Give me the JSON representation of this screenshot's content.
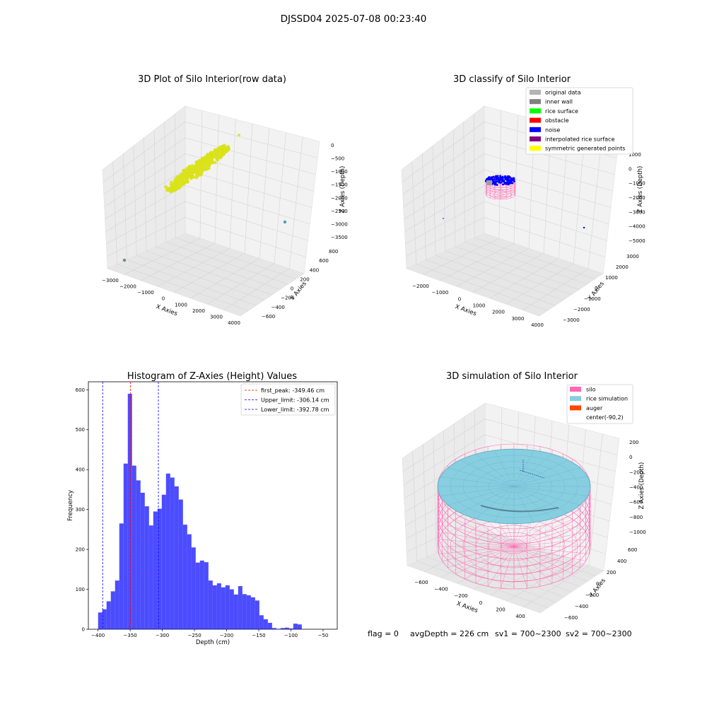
{
  "figure": {
    "suptitle": "DJSSD04 2025-07-08 00:23:40",
    "footer": {
      "flag": "flag = 0",
      "avg": "avgDepth = 226 cm",
      "sv1": "sv1 = 700~2300",
      "sv2": "sv2 = 700~2300"
    }
  },
  "colors": {
    "raw_points": "#d9e21a",
    "raw_outlier_1": "#6a8a8a",
    "raw_outlier_2": "#4aa0b0",
    "noise": "#0000ff",
    "silo_wire": "#ff69b4",
    "rice": "#87cee0",
    "hist_bar": "#0000ff",
    "hist_bar_alpha": 0.7,
    "peak_line": "#ff0000",
    "limit_line": "#0000ff"
  },
  "chart_data": [
    {
      "type": "scatter",
      "projection": "3d",
      "title": "3D Plot of Silo Interior(row data)",
      "xlabel": "X Axies",
      "ylabel": "Y Axies",
      "zlabel": "Z Axies (Depth)",
      "xticks": [
        "−3000",
        "−2000",
        "−1000",
        "0",
        "1000",
        "2000",
        "3000",
        "4000"
      ],
      "yticks": [
        "−600",
        "−400",
        "−200",
        "0",
        "200",
        "400",
        "600",
        "800"
      ],
      "zticks": [
        "0",
        "−500",
        "−1000",
        "−1500",
        "−2000",
        "−2500",
        "−3000",
        "−3500"
      ],
      "xlim": [
        -3000,
        4000
      ],
      "ylim": [
        -600,
        800
      ],
      "zlim": [
        -3500,
        0
      ],
      "series": [
        {
          "values": [
            {
              "x": -400,
              "y": 0,
              "z": -300
            },
            {
              "x": -200,
              "y": 50,
              "z": -250
            },
            {
              "x": 0,
              "y": 100,
              "z": -200
            },
            {
              "x": -600,
              "y": -50,
              "z": -350
            },
            {
              "x": -800,
              "y": -100,
              "z": -400
            },
            {
              "x": 200,
              "y": 150,
              "z": -180
            }
          ]
        }
      ],
      "outliers": [
        {
          "x": -2900,
          "y": -500,
          "z": -3300
        },
        {
          "x": 3900,
          "y": 600,
          "z": -3000
        },
        {
          "x": 600,
          "y": 200,
          "z": -100
        }
      ]
    },
    {
      "type": "scatter",
      "projection": "3d",
      "title": "3D classify of Silo Interior",
      "xlabel": "X Axies",
      "ylabel": "Y Axies",
      "zlabel": "Z Axies (Depth)",
      "xticks": [
        "−2000",
        "−1000",
        "0",
        "1000",
        "2000",
        "3000",
        "4000"
      ],
      "yticks": [
        "−3000",
        "−2000",
        "−1000",
        "0",
        "1000",
        "2000",
        "3000"
      ],
      "zticks": [
        "1000",
        "0",
        "−1000",
        "−2000",
        "−3000",
        "−4000",
        "−5000"
      ],
      "xlim": [
        -2000,
        4000
      ],
      "ylim": [
        -3000,
        3000
      ],
      "zlim": [
        -5000,
        1000
      ],
      "legend": {
        "placement": "upper-right",
        "entries": [
          {
            "label": "original data",
            "color": "#b4b4b4"
          },
          {
            "label": "inner wall",
            "color": "#808080"
          },
          {
            "label": "rice surface",
            "color": "#00ff00"
          },
          {
            "label": "obstacle",
            "color": "#ff0000"
          },
          {
            "label": "noise",
            "color": "#0000ff"
          },
          {
            "label": "interpolated rice surface",
            "color": "#800080"
          },
          {
            "label": "symmetric generated points",
            "color": "#ffff00"
          }
        ]
      }
    },
    {
      "type": "bar",
      "subtype": "histogram",
      "title": "Histogram of Z-Axies (Height) Values",
      "xlabel": "Depth (cm)",
      "ylabel": "Frequency",
      "xlim": [
        -415,
        -28
      ],
      "ylim": [
        0,
        620
      ],
      "xticks": [
        "−400",
        "−350",
        "−300",
        "−250",
        "−200",
        "−150",
        "−100",
        "−50"
      ],
      "yticks": [
        "0",
        "100",
        "200",
        "300",
        "400",
        "500",
        "600"
      ],
      "bin_width": 6.6,
      "bins_start": -399.9,
      "values": [
        42,
        50,
        70,
        95,
        122,
        265,
        415,
        590,
        410,
        373,
        342,
        308,
        260,
        295,
        302,
        337,
        390,
        380,
        358,
        325,
        262,
        238,
        205,
        167,
        172,
        168,
        122,
        110,
        115,
        105,
        110,
        100,
        87,
        108,
        88,
        85,
        80,
        72,
        35,
        25,
        16,
        3,
        1,
        3,
        4,
        2,
        14,
        12
      ],
      "vlines": [
        {
          "name": "first_peak",
          "x": -349.46,
          "label": "first_peak: -349.46 cm",
          "style": "red-dashed"
        },
        {
          "name": "Upper_limit",
          "x": -306.14,
          "label": "Upper_limit: -306.14 cm",
          "style": "blue-dashed"
        },
        {
          "name": "Lower_limit",
          "x": -392.78,
          "label": "Lower_limit: -392.78 cm",
          "style": "blue-dashed"
        }
      ],
      "legend": {
        "placement": "upper-right"
      }
    },
    {
      "type": "area",
      "projection": "3d",
      "title": "3D simulation of Silo Interior",
      "xlabel": "X Axies",
      "ylabel": "Y Axies",
      "zlabel": "Z Axies (Depth)",
      "xticks": [
        "−600",
        "−400",
        "−200",
        "0",
        "200",
        "400"
      ],
      "yticks": [
        "−600",
        "−400",
        "−200",
        "0",
        "200",
        "400",
        "600"
      ],
      "zticks": [
        "200",
        "0",
        "−200",
        "−400",
        "−600",
        "−800",
        "−1000"
      ],
      "xlim": [
        -700,
        500
      ],
      "ylim": [
        -700,
        700
      ],
      "zlim": [
        -1100,
        250
      ],
      "legend": {
        "placement": "upper-right",
        "entries": [
          {
            "label": "silo",
            "color": "#ff69b4"
          },
          {
            "label": "rice simulation",
            "color": "#87cee0"
          },
          {
            "label": "auger",
            "color": "#ff4500"
          },
          {
            "label": "center(-90,2)",
            "color": ""
          }
        ]
      }
    }
  ]
}
